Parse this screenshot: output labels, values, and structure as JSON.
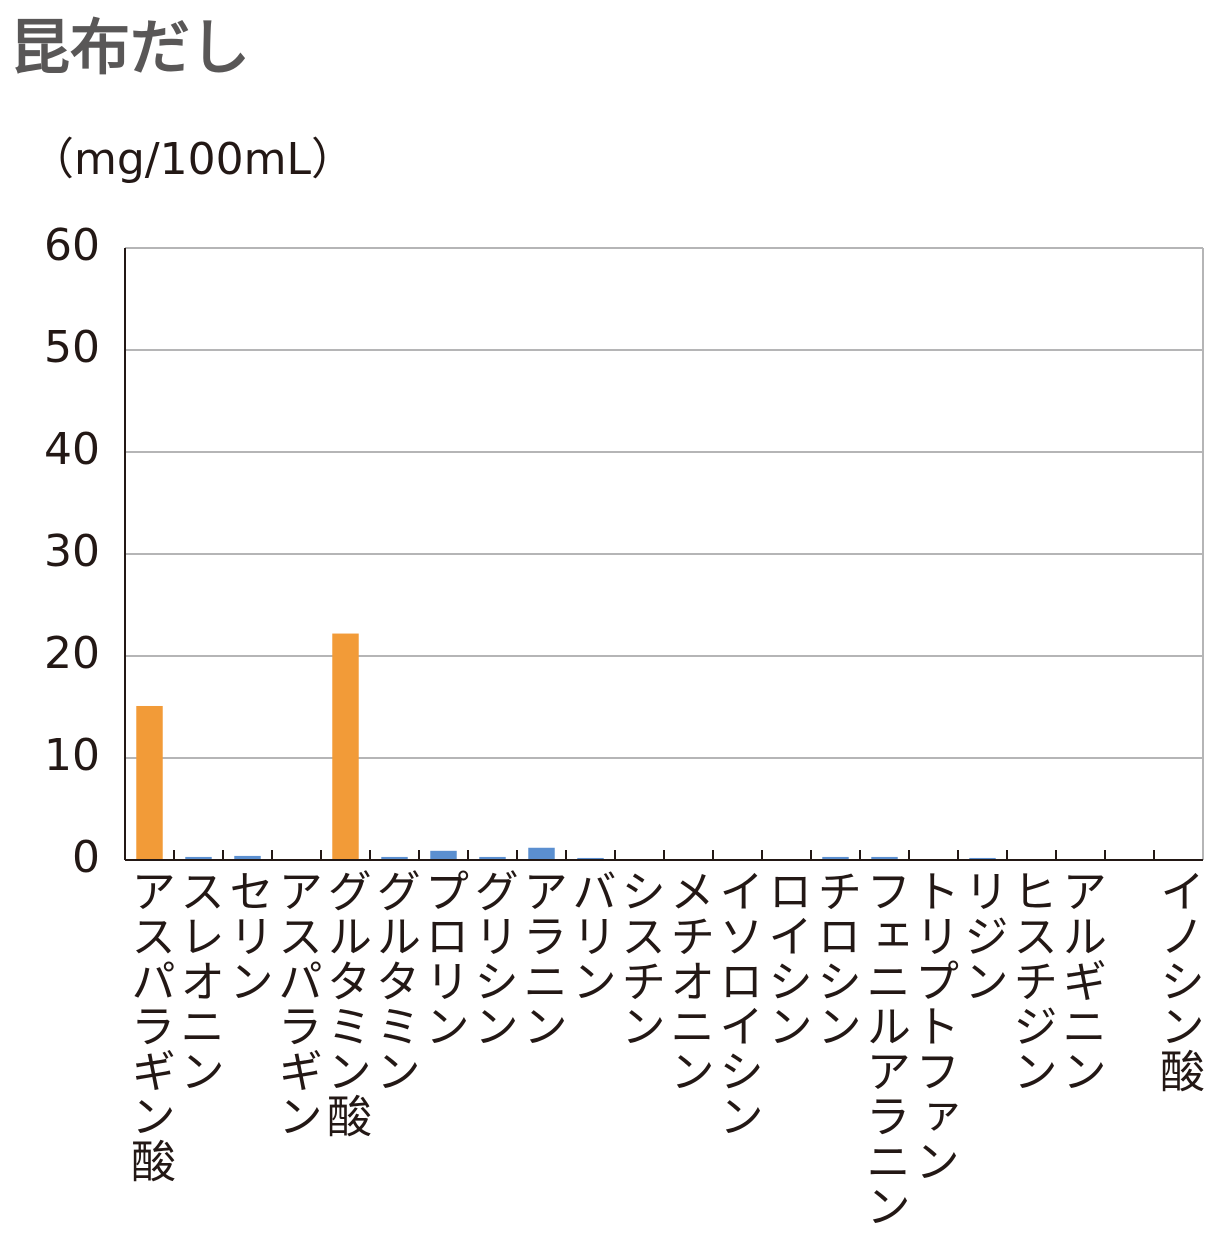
{
  "chart_data": {
    "type": "bar",
    "title": "昆布だし",
    "y_label": "（mg/100mL）",
    "categories": [
      "アスパラギン酸",
      "スレオニン",
      "セリン",
      "アスパラギン",
      "グルタミン酸",
      "グルタミン",
      "プロリン",
      "グリシン",
      "アラニン",
      "バリン",
      "シスチン",
      "メチオニン",
      "イソロイシン",
      "ロイシン",
      "チロシン",
      "フェニルアラニン",
      "トリプトファン",
      "リジン",
      "ヒスチジン",
      "アルギニン",
      null,
      "イノシン酸"
    ],
    "values": [
      15.1,
      0.3,
      0.4,
      0,
      22.2,
      0.3,
      0.9,
      0.3,
      1.2,
      0.2,
      0,
      0,
      0,
      0,
      0.3,
      0.3,
      0,
      0.2,
      0,
      0,
      0,
      0
    ],
    "colors": [
      "#f29b38",
      "#5b8fd0",
      "#5b8fd0",
      "#5b8fd0",
      "#f29b38",
      "#5b8fd0",
      "#5b8fd0",
      "#5b8fd0",
      "#5b8fd0",
      "#5b8fd0",
      "#5b8fd0",
      "#5b8fd0",
      "#5b8fd0",
      "#5b8fd0",
      "#5b8fd0",
      "#5b8fd0",
      "#5b8fd0",
      "#5b8fd0",
      "#5b8fd0",
      "#5b8fd0",
      "#5b8fd0",
      "#5b8fd0"
    ],
    "ylim": [
      0,
      60
    ],
    "yticks": [
      0,
      10,
      20,
      30,
      40,
      50,
      60
    ],
    "grid": true
  }
}
